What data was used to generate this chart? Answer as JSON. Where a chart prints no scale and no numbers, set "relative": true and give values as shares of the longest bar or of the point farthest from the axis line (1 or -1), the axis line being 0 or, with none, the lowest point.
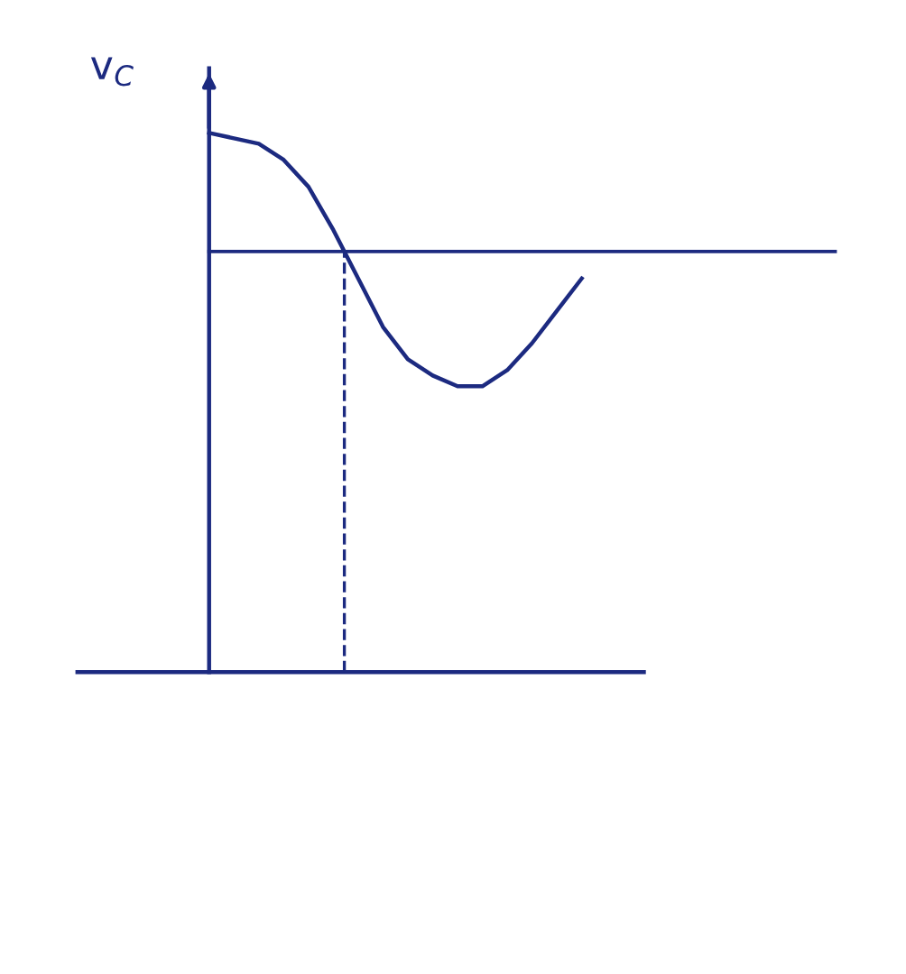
{
  "chart_data": {
    "type": "line",
    "relative": true,
    "ylabel": "v$_{C}$",
    "grid": false,
    "marker": "none",
    "line_style": "solid",
    "categories": [
      null,
      null,
      null,
      null,
      null,
      null,
      null,
      null,
      null,
      null,
      null,
      null,
      null,
      null,
      null,
      null
    ],
    "series": [
      {
        "color": "#1c2a80",
        "values": [
          1.0,
          0.99,
          0.98,
          0.95,
          0.9,
          0.82,
          0.73,
          0.64,
          0.58,
          0.55,
          0.53,
          0.53,
          0.56,
          0.61,
          0.67,
          0.73
        ]
      }
    ],
    "ref_lines": [
      {
        "axis": "y",
        "value": 0.78,
        "label": null,
        "color": "#1c2a80",
        "line_style": "solid"
      }
    ]
  }
}
